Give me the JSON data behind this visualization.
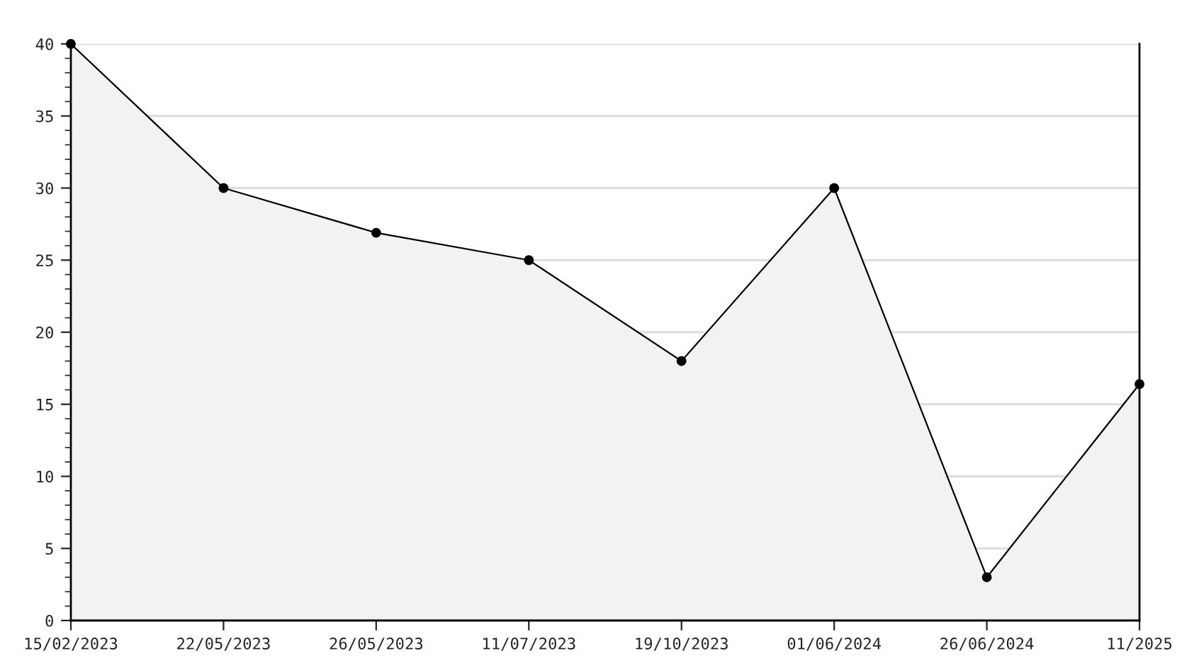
{
  "chart_data": {
    "type": "area",
    "categories": [
      "15/02/2023",
      "22/05/2023",
      "26/05/2023",
      "11/07/2023",
      "19/10/2023",
      "01/06/2024",
      "26/06/2024",
      "11/2025"
    ],
    "series": [
      {
        "color": "#000000",
        "values": [
          40,
          30,
          26.9,
          25,
          18,
          30,
          3,
          16.4
        ]
      }
    ],
    "ylim": [
      0,
      40
    ],
    "yticks": [
      0,
      5,
      10,
      15,
      20,
      25,
      30,
      35,
      40
    ],
    "grid": "y",
    "marker": "circle",
    "line_style": "solid"
  }
}
